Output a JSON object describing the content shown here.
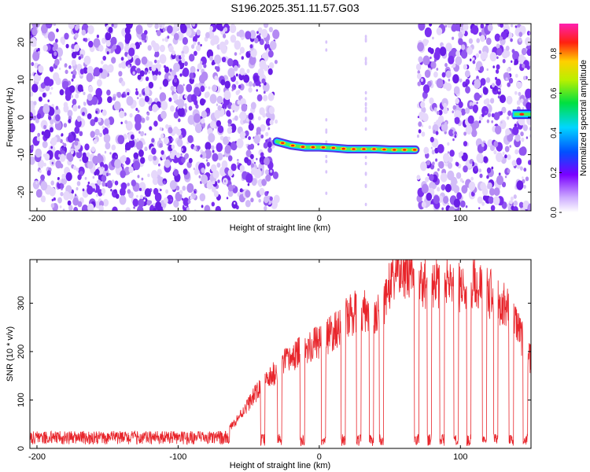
{
  "title": "S196.2025.351.11.57.G03",
  "colors": {
    "snr_line": "#e8252b",
    "scatter_purple": "#7b2ff0",
    "axis": "#000000"
  },
  "chart_data": [
    {
      "type": "heatmap",
      "name": "spectrogram",
      "title": "S196.2025.351.11.57.G03",
      "xlabel": "Height of straight line (km)",
      "ylabel": "Frequency (Hz)",
      "xlim": [
        -205,
        150
      ],
      "ylim": [
        -25,
        25
      ],
      "xticks": [
        -200,
        -100,
        0,
        100
      ],
      "xtick_labels": [
        "-200",
        "-100",
        "0",
        "100"
      ],
      "yticks": [
        -20,
        -10,
        0,
        10,
        20
      ],
      "ytick_labels": [
        "-20",
        "-10",
        "0",
        "10",
        "20"
      ],
      "noise_regions": [
        {
          "x": [
            -205,
            -30
          ],
          "y": [
            -25,
            25
          ],
          "density": "high"
        },
        {
          "x": [
            70,
            150
          ],
          "y": [
            -25,
            25
          ],
          "density": "high"
        }
      ],
      "signal_track": [
        {
          "x": -30,
          "y": -6.5
        },
        {
          "x": -20,
          "y": -7.5
        },
        {
          "x": -10,
          "y": -8
        },
        {
          "x": 0,
          "y": -8
        },
        {
          "x": 10,
          "y": -8.2
        },
        {
          "x": 20,
          "y": -8.5
        },
        {
          "x": 30,
          "y": -8.5
        },
        {
          "x": 40,
          "y": -8.5
        },
        {
          "x": 50,
          "y": -8.7
        },
        {
          "x": 60,
          "y": -8.7
        },
        {
          "x": 68,
          "y": -8.7
        }
      ],
      "signal_track_2": [
        {
          "x": 137,
          "y": 0.8
        },
        {
          "x": 150,
          "y": 0.8
        }
      ],
      "colorbar": {
        "label": "Normalized spectral amplitude",
        "range": [
          0,
          0.95
        ],
        "ticks": [
          0.0,
          0.2,
          0.4,
          0.6,
          0.8
        ],
        "tick_labels": [
          "0.0",
          "0.2",
          "0.4",
          "0.6",
          "0.8"
        ]
      }
    },
    {
      "type": "line",
      "name": "snr",
      "xlabel": "Height of straight line (km)",
      "ylabel": "SNR (10 * v/v)",
      "xlim": [
        -205,
        150
      ],
      "ylim": [
        0,
        390
      ],
      "xticks": [
        -200,
        -100,
        0,
        100
      ],
      "xtick_labels": [
        "-200",
        "-100",
        "0",
        "100"
      ],
      "yticks": [
        0,
        100,
        200,
        300
      ],
      "ytick_labels": [
        "0",
        "100",
        "200",
        "300"
      ],
      "series": [
        {
          "name": "SNR",
          "envelope": [
            {
              "x": -205,
              "y": 25
            },
            {
              "x": -150,
              "y": 25
            },
            {
              "x": -80,
              "y": 28
            },
            {
              "x": -65,
              "y": 35
            },
            {
              "x": -55,
              "y": 70
            },
            {
              "x": -45,
              "y": 110
            },
            {
              "x": -35,
              "y": 140
            },
            {
              "x": -25,
              "y": 170
            },
            {
              "x": -15,
              "y": 190
            },
            {
              "x": 0,
              "y": 215
            },
            {
              "x": 10,
              "y": 230
            },
            {
              "x": 20,
              "y": 260
            },
            {
              "x": 30,
              "y": 280
            },
            {
              "x": 40,
              "y": 250
            },
            {
              "x": 48,
              "y": 310
            },
            {
              "x": 55,
              "y": 360
            },
            {
              "x": 62,
              "y": 350
            },
            {
              "x": 70,
              "y": 340
            },
            {
              "x": 80,
              "y": 330
            },
            {
              "x": 90,
              "y": 335
            },
            {
              "x": 100,
              "y": 320
            },
            {
              "x": 110,
              "y": 325
            },
            {
              "x": 120,
              "y": 310
            },
            {
              "x": 130,
              "y": 290
            },
            {
              "x": 140,
              "y": 250
            },
            {
              "x": 148,
              "y": 180
            }
          ],
          "dropouts_x": [
            -40,
            -28,
            -12,
            3,
            17,
            28,
            37,
            44,
            69,
            78,
            87,
            97,
            106,
            117,
            125,
            136,
            146
          ]
        }
      ]
    }
  ]
}
